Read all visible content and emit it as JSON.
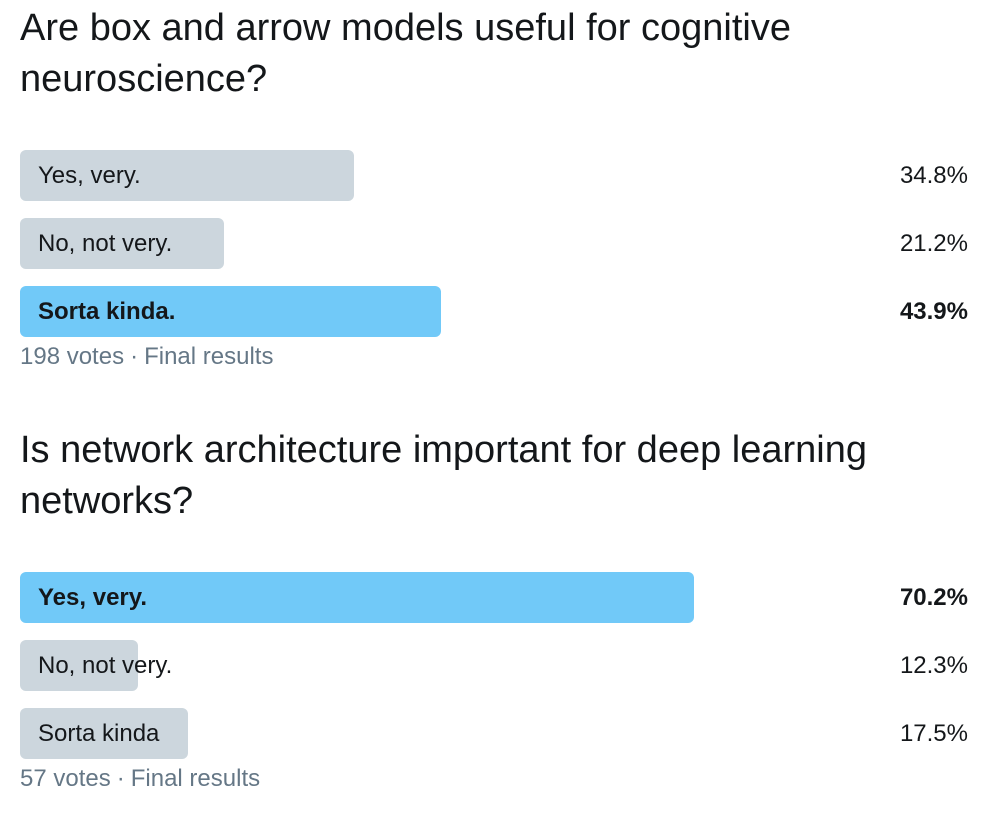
{
  "polls": [
    {
      "question": "Are box and arrow models useful for cognitive neuroscience?",
      "options": [
        {
          "label": "Yes, very.",
          "percent": "34.8%",
          "fraction": 0.348,
          "winner": false
        },
        {
          "label": "No, not very.",
          "percent": "21.2%",
          "fraction": 0.212,
          "winner": false
        },
        {
          "label": "Sorta kinda.",
          "percent": "43.9%",
          "fraction": 0.439,
          "winner": true
        }
      ],
      "votes": "198 votes",
      "status": "Final results"
    },
    {
      "question": "Is network architecture important for deep learning networks?",
      "options": [
        {
          "label": "Yes, very.",
          "percent": "70.2%",
          "fraction": 0.702,
          "winner": true
        },
        {
          "label": "No, not very.",
          "percent": "12.3%",
          "fraction": 0.123,
          "winner": false
        },
        {
          "label": "Sorta kinda",
          "percent": "17.5%",
          "fraction": 0.175,
          "winner": false
        }
      ],
      "votes": "57 votes",
      "status": "Final results"
    }
  ],
  "colors": {
    "bar_default": "#ccd6dd",
    "bar_winner": "#71c9f8",
    "meta_text": "#657786"
  }
}
